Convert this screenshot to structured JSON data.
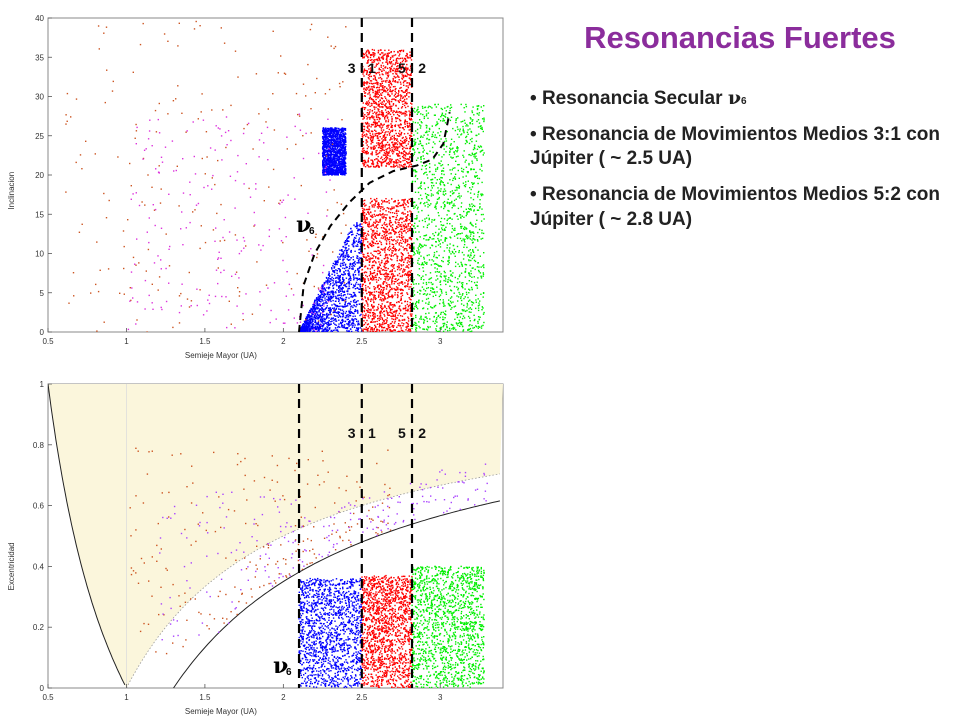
{
  "slide": {
    "title": "Resonancias Fuertes",
    "bullets": [
      {
        "text": "Resonancia Secular",
        "symbol": "ν",
        "subscript": "6"
      },
      {
        "text": "Resonancia de Movimientos Medios 3:1 con Júpiter ( ~ 2.5 UA)"
      },
      {
        "text": "Resonancia de Movimientos Medios 5:2 con Júpiter ( ~ 2.8 UA)"
      }
    ]
  },
  "chart_data": [
    {
      "type": "scatter",
      "xlabel": "Semieje Mayor (UA)",
      "ylabel": "Inclinacion",
      "xlim": [
        0.5,
        3.4
      ],
      "ylim": [
        0,
        40
      ],
      "xticks": [
        "0.5",
        "1",
        "1.5",
        "2",
        "2.5",
        "3"
      ],
      "yticks": [
        "0",
        "5",
        "10",
        "15",
        "20",
        "25",
        "30",
        "35",
        "40"
      ],
      "resonance_lines": [
        {
          "x": 2.5,
          "label": "3 : 1"
        },
        {
          "x": 2.82,
          "label": "5 : 2"
        }
      ],
      "secular_label": {
        "symbol": "ν",
        "subscript": "6"
      },
      "series": [
        {
          "color": "#0000ff",
          "x_range": [
            2.1,
            2.5
          ],
          "y_range": [
            0,
            14
          ]
        },
        {
          "color": "#0000ff",
          "x_range": [
            2.25,
            2.4
          ],
          "y_range": [
            20,
            26
          ]
        },
        {
          "color": "#ff0000",
          "x_range": [
            2.5,
            2.82
          ],
          "y_range": [
            0,
            17
          ]
        },
        {
          "color": "#ff0000",
          "x_range": [
            2.5,
            2.82
          ],
          "y_range": [
            21,
            36
          ]
        },
        {
          "color": "#00ee00",
          "x_range": [
            2.82,
            3.28
          ],
          "y_range": [
            0,
            29
          ]
        },
        {
          "color": "#cc5522",
          "x_range": [
            0.6,
            2.4
          ],
          "y_range": [
            0,
            40
          ]
        },
        {
          "color": "#dd33dd",
          "x_range": [
            1.0,
            2.3
          ],
          "y_range": [
            0,
            28
          ]
        }
      ]
    },
    {
      "type": "scatter",
      "xlabel": "Semieje Mayor (UA)",
      "ylabel": "Excentricidad",
      "xlim": [
        0.5,
        3.4
      ],
      "ylim": [
        0,
        1
      ],
      "xticks": [
        "0.5",
        "1",
        "1.5",
        "2",
        "2.5",
        "3"
      ],
      "yticks": [
        "0",
        "0.2",
        "0.4",
        "0.6",
        "0.8",
        "1"
      ],
      "resonance_lines": [
        {
          "x": 2.1,
          "label": ""
        },
        {
          "x": 2.5,
          "label": "3 : 1"
        },
        {
          "x": 2.82,
          "label": "5 : 2"
        }
      ],
      "secular_label": {
        "symbol": "ν",
        "subscript": "6"
      },
      "curves": [
        {
          "name_hidden": "q=1 AU",
          "formula": "e = 1 - 1/a"
        },
        {
          "name_hidden": "Q=1 AU",
          "formula": "e = 1/a - 1"
        },
        {
          "name_hidden": "q=1.3 AU",
          "formula": "e = 1 - 1.3/a"
        }
      ],
      "series": [
        {
          "color": "#0000ff",
          "x_range": [
            2.1,
            2.5
          ],
          "y_range": [
            0,
            0.36
          ]
        },
        {
          "color": "#ff0000",
          "x_range": [
            2.5,
            2.82
          ],
          "y_range": [
            0,
            0.37
          ]
        },
        {
          "color": "#00ee00",
          "x_range": [
            2.82,
            3.28
          ],
          "y_range": [
            0,
            0.4
          ]
        },
        {
          "color": "#cc5522",
          "x_range": [
            1.0,
            2.7
          ],
          "y_range": [
            0.1,
            0.8
          ]
        },
        {
          "color": "#aa44ff",
          "x_range": [
            1.2,
            3.3
          ],
          "y_range": [
            0.15,
            0.65
          ]
        }
      ]
    }
  ]
}
